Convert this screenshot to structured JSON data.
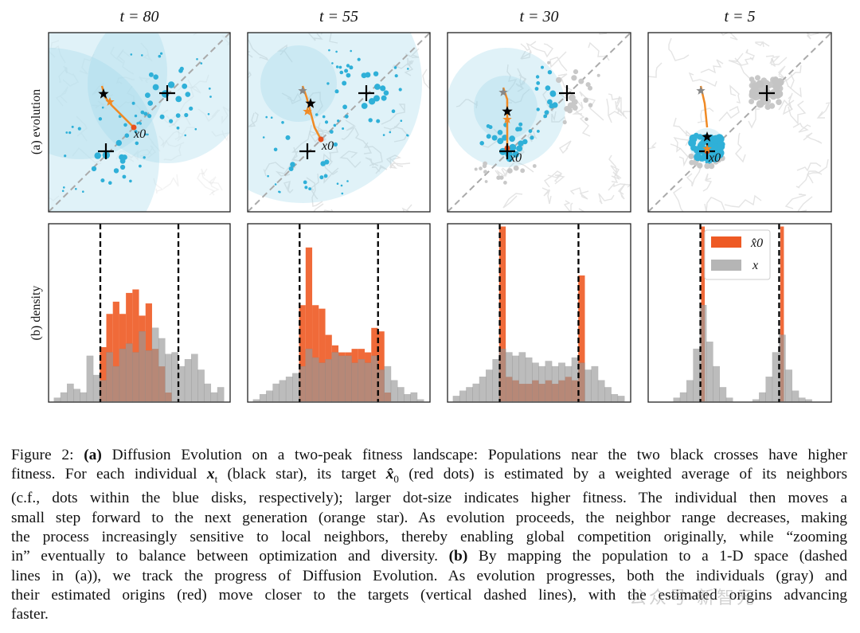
{
  "figure": {
    "row_labels": [
      "(a) evolution",
      "(b) density"
    ],
    "panel_titles": [
      "t = 80",
      "t = 55",
      "t = 30",
      "t = 5"
    ],
    "x0_label": "x0",
    "legend": {
      "xhat0": "x̂0",
      "x": "x"
    },
    "colors": {
      "blue": "#2fb0d8",
      "disk": "#9fd6ea",
      "orange": "#f08a24",
      "red": "#e8501e",
      "hist_red": "#ee5a24",
      "gray": "#a8a8a8"
    }
  },
  "chart_data": [
    {
      "type": "bar",
      "title": "t = 80",
      "xlim": [
        0,
        1
      ],
      "ylim": [
        0,
        1
      ],
      "bin_start": 0.03,
      "bin_width": 0.036,
      "dashed_lines": [
        0.285,
        0.715
      ],
      "series": [
        {
          "name": "x",
          "values": [
            0.02,
            0.05,
            0.1,
            0.07,
            0.05,
            0.26,
            0.15,
            0.12,
            0.28,
            0.2,
            0.3,
            0.33,
            0.28,
            0.4,
            0.29,
            0.42,
            0.36,
            0.27,
            0.28,
            0.2,
            0.24,
            0.27,
            0.18,
            0.1,
            0.05,
            0.08
          ]
        },
        {
          "name": "x̂0",
          "values": [
            0,
            0,
            0,
            0,
            0,
            0,
            0,
            0.31,
            0.5,
            0.57,
            0.5,
            0.62,
            0.64,
            0.49,
            0.56,
            0.3,
            0.2,
            0.05,
            0,
            0,
            0,
            0,
            0,
            0,
            0,
            0
          ]
        }
      ]
    },
    {
      "type": "bar",
      "title": "t = 55",
      "xlim": [
        0,
        1
      ],
      "ylim": [
        0,
        1
      ],
      "bin_start": 0.03,
      "bin_width": 0.036,
      "dashed_lines": [
        0.285,
        0.715
      ],
      "series": [
        {
          "name": "x",
          "values": [
            0.01,
            0.04,
            0.06,
            0.1,
            0.12,
            0.14,
            0.16,
            0.2,
            0.3,
            0.25,
            0.22,
            0.24,
            0.28,
            0.26,
            0.26,
            0.22,
            0.24,
            0.22,
            0.26,
            0.18,
            0.2,
            0.12,
            0.08,
            0.04,
            0.05,
            0.01
          ]
        },
        {
          "name": "x̂0",
          "values": [
            0,
            0,
            0,
            0,
            0,
            0,
            0,
            0.55,
            0.88,
            0.55,
            0.53,
            0.38,
            0.32,
            0.28,
            0.28,
            0.3,
            0.3,
            0.28,
            0.42,
            0.4,
            0.05,
            0,
            0,
            0,
            0,
            0
          ]
        }
      ]
    },
    {
      "type": "bar",
      "title": "t = 30",
      "xlim": [
        0,
        1
      ],
      "ylim": [
        0,
        1
      ],
      "bin_start": 0.03,
      "bin_width": 0.036,
      "dashed_lines": [
        0.285,
        0.715
      ],
      "series": [
        {
          "name": "x",
          "values": [
            0.03,
            0.06,
            0.08,
            0.1,
            0.14,
            0.18,
            0.24,
            0.3,
            0.28,
            0.26,
            0.28,
            0.25,
            0.22,
            0.2,
            0.23,
            0.2,
            0.22,
            0.2,
            0.25,
            0.22,
            0.18,
            0.2,
            0.12,
            0.08,
            0.04,
            0.03
          ]
        },
        {
          "name": "x̂0",
          "values": [
            0,
            0,
            0,
            0,
            0,
            0,
            0,
            1.0,
            0.14,
            0.12,
            0.1,
            0.1,
            0.12,
            0.1,
            0.12,
            0.1,
            0.12,
            0.14,
            0.12,
            0.72,
            0,
            0,
            0,
            0,
            0,
            0
          ]
        }
      ]
    },
    {
      "type": "bar",
      "title": "t = 5",
      "xlim": [
        0,
        1
      ],
      "ylim": [
        0,
        1
      ],
      "bin_start": 0.03,
      "bin_width": 0.036,
      "dashed_lines": [
        0.285,
        0.715
      ],
      "series": [
        {
          "name": "x",
          "values": [
            0,
            0,
            0,
            0.02,
            0.05,
            0.12,
            0.3,
            0.55,
            0.34,
            0.2,
            0.08,
            0.02,
            0,
            0,
            0,
            0.01,
            0.05,
            0.14,
            0.28,
            0.38,
            0.18,
            0.06,
            0.02,
            0.01,
            0,
            0
          ]
        },
        {
          "name": "x̂0",
          "values": [
            0,
            0,
            0,
            0,
            0,
            0,
            0,
            1.0,
            0,
            0,
            0,
            0,
            0,
            0,
            0,
            0,
            0,
            0,
            0,
            1.0,
            0,
            0,
            0,
            0,
            0,
            0
          ]
        }
      ]
    }
  ],
  "caption": {
    "lines": [
      [
        [
          "t",
          "Figure 2: "
        ],
        [
          "b",
          "(a)"
        ],
        [
          "t",
          " Diffusion Evolution on a two-peak fitness landscape: Populations near the two black crosses have higher"
        ]
      ],
      [
        [
          "t",
          "fitness. For each individual "
        ],
        [
          "m",
          "x"
        ],
        [
          "sub",
          "t"
        ],
        [
          "t",
          " (black star), its target "
        ],
        [
          "m",
          "x̂"
        ],
        [
          "sub",
          "0"
        ],
        [
          "t",
          " (red dots) is estimated by a weighted average of its neighbors"
        ]
      ],
      [
        [
          "t",
          "(c.f., dots within the blue disks, respectively); larger dot-size indicates higher fitness.  The individual then moves a"
        ]
      ],
      [
        [
          "t",
          "small step forward to the next generation (orange star). As evolution proceeds, the neighbor range decreases, making"
        ]
      ],
      [
        [
          "t",
          "the process increasingly sensitive to local neighbors, thereby enabling global competition originally, while “zooming"
        ]
      ],
      [
        [
          "t",
          "in” eventually to balance between optimization and diversity. "
        ],
        [
          "b",
          "(b)"
        ],
        [
          "t",
          " By mapping the population to a 1-D space (dashed"
        ]
      ],
      [
        [
          "t",
          "lines in (a)), we track the progress of Diffusion Evolution.  As evolution progresses, both the individuals (gray) and"
        ]
      ],
      [
        [
          "t",
          "their estimated origins (red) move closer to the targets (vertical dashed lines), with the estimated origins advancing"
        ]
      ],
      [
        [
          "t",
          "faster."
        ]
      ]
    ]
  },
  "watermark": "公众号·新智元"
}
